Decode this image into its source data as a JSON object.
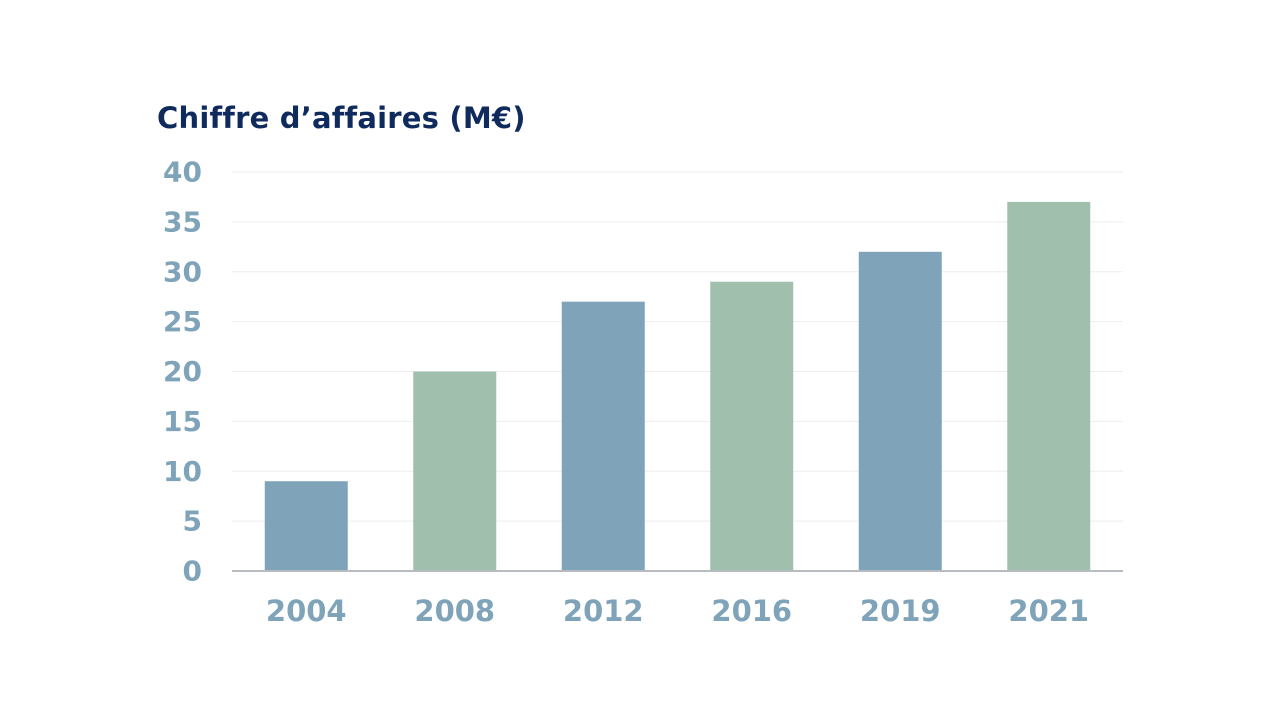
{
  "chart_data": {
    "type": "bar",
    "title": "Chiffre d’affaires (M€)",
    "xlabel": "",
    "ylabel": "",
    "categories": [
      "2004",
      "2008",
      "2012",
      "2016",
      "2019",
      "2021"
    ],
    "values": [
      9,
      20,
      27,
      29,
      32,
      37
    ],
    "ylim": [
      0,
      40
    ],
    "yticks": [
      "0",
      "5",
      "10",
      "15",
      "20",
      "25",
      "30",
      "35",
      "40"
    ],
    "grid": true,
    "legend": "none",
    "colors": [
      "#7fa3b8",
      "#a0c0ad",
      "#7fa3b8",
      "#a0c0ad",
      "#7fa3b8",
      "#a0c0ad"
    ],
    "gridline_color": "#eeeeee",
    "axis_color": "#b8bcc0",
    "tick_color": "#7fa3b8",
    "title_color": "#0f2a5c"
  }
}
